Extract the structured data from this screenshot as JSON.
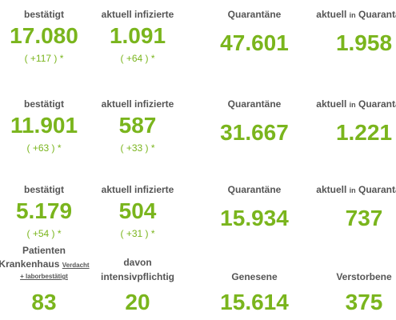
{
  "rows": [
    {
      "cells": [
        {
          "label": "bestätigt",
          "value": "17.080",
          "change": "( +117 ) *"
        },
        {
          "label": "aktuell infizierte",
          "value": "1.091",
          "change": "( +64 ) *"
        },
        {
          "label": "Quarantäne",
          "value": "47.601"
        },
        {
          "label": [
            "aktuell",
            "in",
            "Quarantäne"
          ],
          "value": "1.958"
        }
      ]
    },
    {
      "cells": [
        {
          "label": "bestätigt",
          "value": "11.901",
          "change": "( +63 ) *"
        },
        {
          "label": "aktuell infizierte",
          "value": "587",
          "change": "( +33 ) *"
        },
        {
          "label": "Quarantäne",
          "value": "31.667"
        },
        {
          "label": [
            "aktuell",
            "in",
            "Quarantäne"
          ],
          "value": "1.221"
        }
      ]
    },
    {
      "cells": [
        {
          "label": "bestätigt",
          "value": "5.179",
          "change": "( +54 ) *"
        },
        {
          "label": "aktuell infizierte",
          "value": "504",
          "change": "( +31 ) *"
        },
        {
          "label": "Quarantäne",
          "value": "15.934"
        },
        {
          "label": [
            "aktuell",
            "in",
            "Quarantäne"
          ],
          "value": "737"
        }
      ]
    },
    {
      "cells": [
        {
          "label": [
            "Patienten",
            "Krankenhaus",
            "Verdacht",
            "+ laborbestätigt"
          ],
          "value": "83"
        },
        {
          "label": [
            "davon",
            "intensivpflichtig"
          ],
          "value": "20"
        },
        {
          "label": "Genesene",
          "value": "15.614"
        },
        {
          "label": "Verstorbene",
          "value": "375"
        }
      ]
    }
  ]
}
